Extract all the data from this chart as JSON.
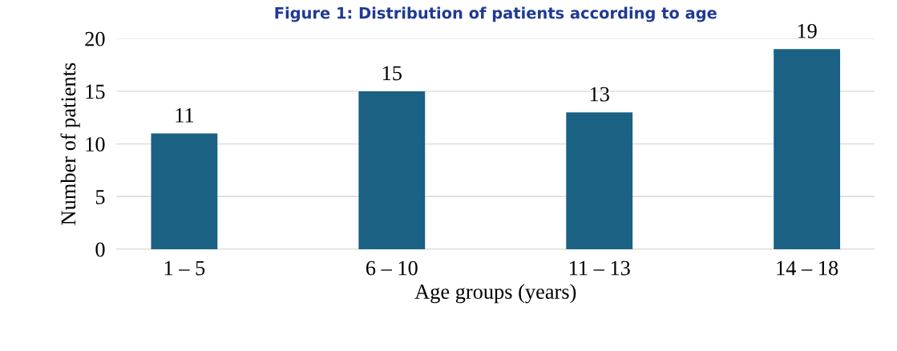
{
  "chart_data": {
    "type": "bar",
    "title": "Figure 1: Distribution of patients according to age",
    "categories": [
      "1 – 5",
      "6 – 10",
      "11 – 13",
      "14 – 18"
    ],
    "values": [
      11,
      15,
      13,
      19
    ],
    "color": "#1a6184",
    "xlabel": "Age groups (years)",
    "ylabel": "Number of patients",
    "ylim": [
      0,
      20
    ],
    "yticks": [
      0,
      5,
      10,
      15,
      20
    ],
    "grid": "y",
    "data_labels": true
  }
}
